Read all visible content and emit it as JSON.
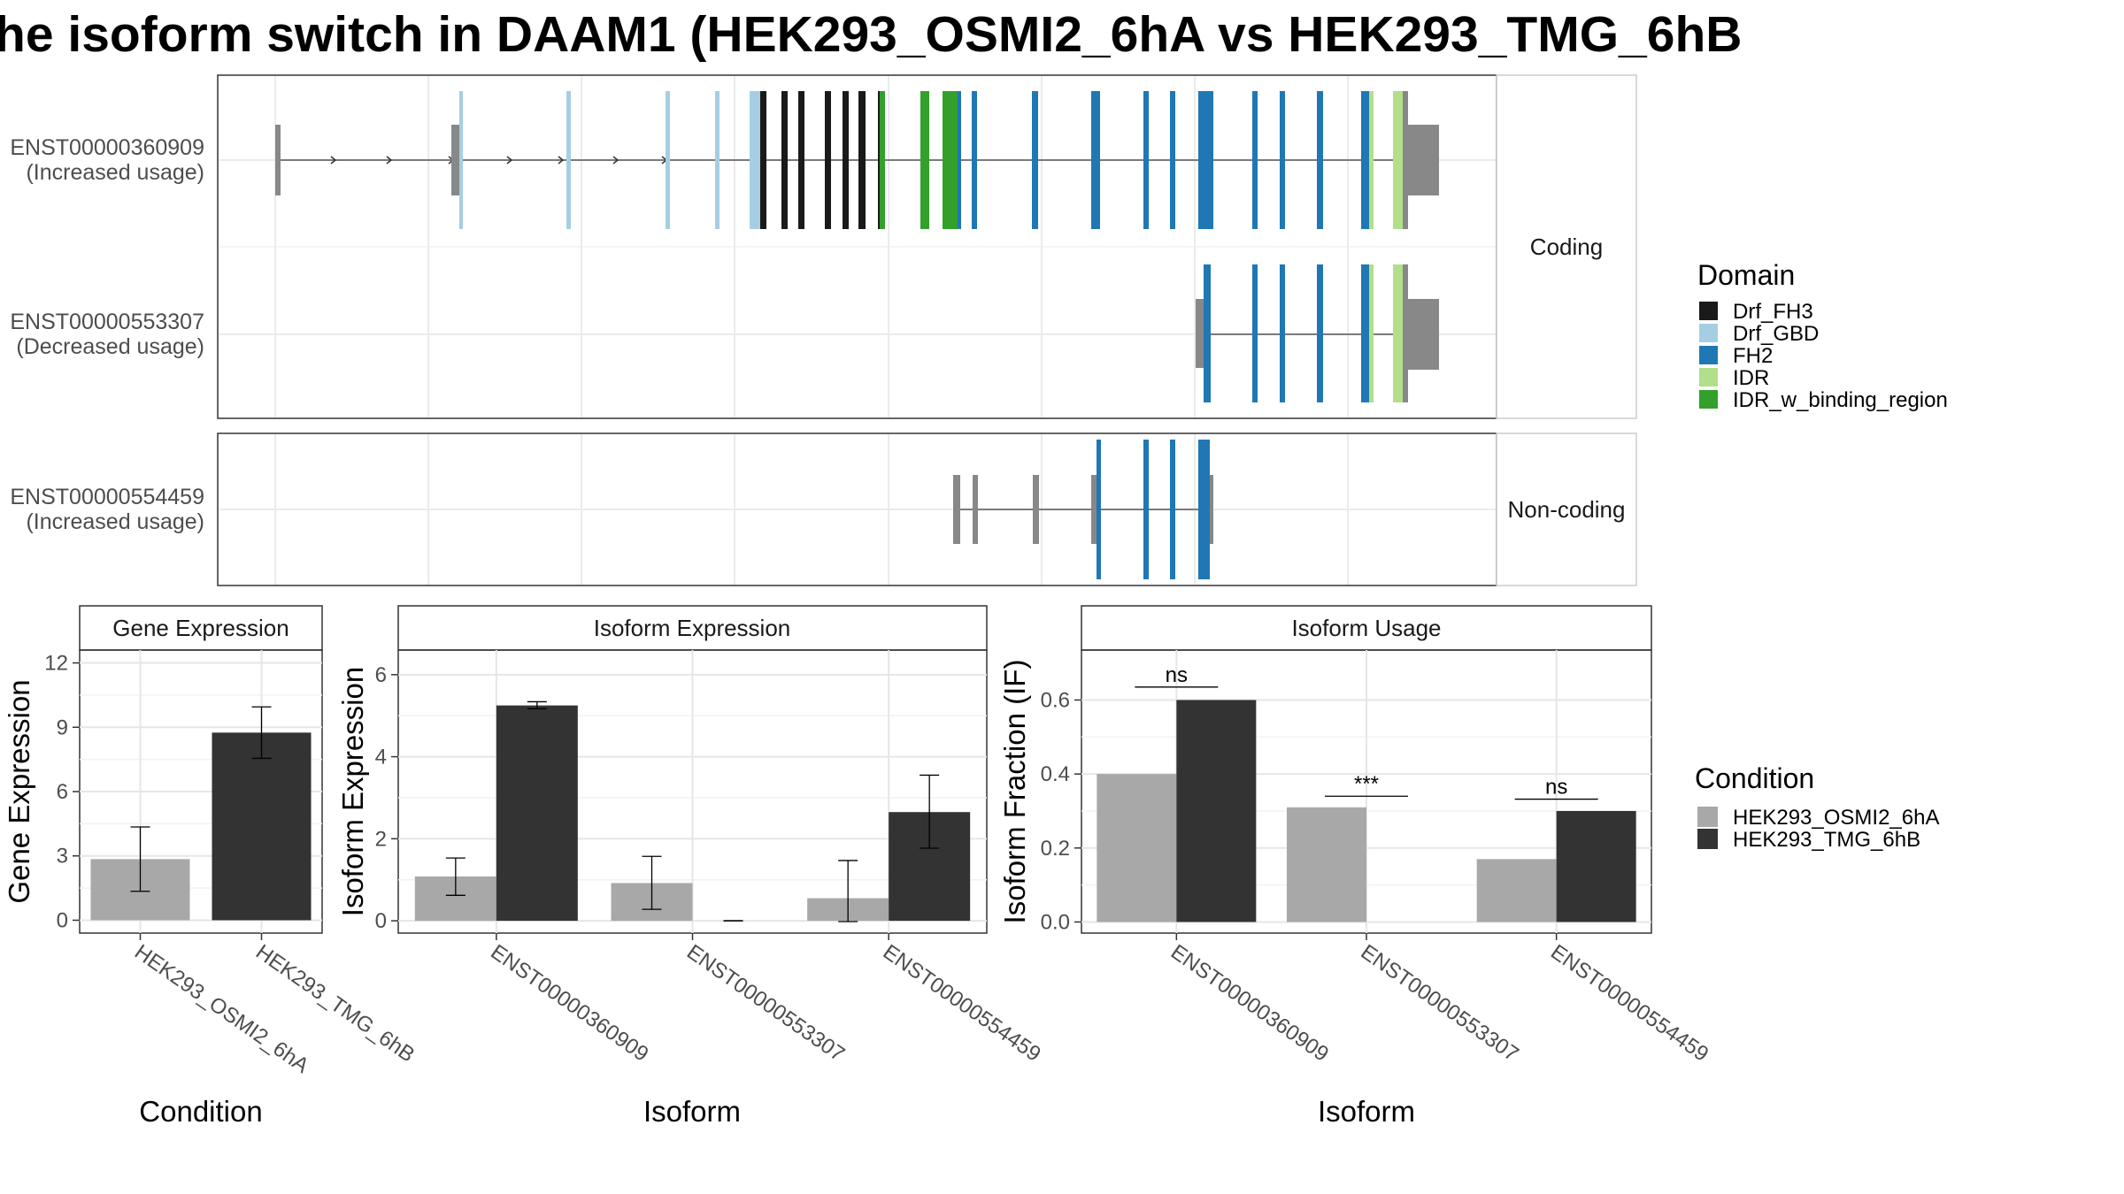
{
  "title": "he isoform switch in DAAM1 (HEK293_OSMI2_6hA vs HEK293_TMG_6hB",
  "colors": {
    "Drf_FH3": "#1a1a1a",
    "Drf_GBD": "#a6cee3",
    "FH2": "#1f78b4",
    "IDR": "#b2df8a",
    "IDR_w_binding_region": "#33a02c",
    "exon": "#888888",
    "cond_A": "#a8a8a8",
    "cond_B": "#333333"
  },
  "structure": {
    "coding_strip": "Coding",
    "noncoding_strip": "Non-coding",
    "transcripts": [
      {
        "id": "ENST00000360909",
        "usage": "(Increased usage)"
      },
      {
        "id": "ENST00000553307",
        "usage": "(Decreased usage)"
      },
      {
        "id": "ENST00000554459",
        "usage": "(Increased usage)"
      }
    ]
  },
  "legend_domain": {
    "title": "Domain",
    "items": [
      "Drf_FH3",
      "Drf_GBD",
      "FH2",
      "IDR",
      "IDR_w_binding_region"
    ]
  },
  "legend_condition": {
    "title": "Condition",
    "items": [
      "HEK293_OSMI2_6hA",
      "HEK293_TMG_6hB"
    ]
  },
  "chart_data": [
    {
      "type": "bar",
      "title": "Gene Expression",
      "xlabel": "Condition",
      "ylabel": "Gene Expression",
      "categories": [
        "HEK293_OSMI2_6hA",
        "HEK293_TMG_6hB"
      ],
      "values": [
        2.85,
        8.75
      ],
      "error_low": [
        1.35,
        7.55
      ],
      "error_high": [
        4.35,
        9.95
      ],
      "ylim": [
        -0.6,
        12.6
      ],
      "yticks": [
        0,
        3,
        6,
        9,
        12
      ]
    },
    {
      "type": "bar",
      "title": "Isoform Expression",
      "xlabel": "Isoform",
      "ylabel": "Isoform Expression",
      "categories": [
        "ENST00000360909",
        "ENST00000553307",
        "ENST00000554459"
      ],
      "series": [
        {
          "name": "HEK293_OSMI2_6hA",
          "values": [
            1.08,
            0.92,
            0.55
          ],
          "error_low": [
            0.62,
            0.28,
            -0.02
          ],
          "error_high": [
            1.53,
            1.57,
            1.47
          ]
        },
        {
          "name": "HEK293_TMG_6hB",
          "values": [
            5.25,
            0.0,
            2.65
          ],
          "error_low": [
            5.17,
            0.0,
            1.77
          ],
          "error_high": [
            5.34,
            0.0,
            3.55
          ]
        }
      ],
      "ylim": [
        -0.3,
        6.6
      ],
      "yticks": [
        0,
        2,
        4,
        6
      ]
    },
    {
      "type": "bar",
      "title": "Isoform Usage",
      "xlabel": "Isoform",
      "ylabel": "Isoform Fraction (IF)",
      "categories": [
        "ENST00000360909",
        "ENST00000553307",
        "ENST00000554459"
      ],
      "series": [
        {
          "name": "HEK293_OSMI2_6hA",
          "values": [
            0.4,
            0.31,
            0.17
          ]
        },
        {
          "name": "HEK293_TMG_6hB",
          "values": [
            0.6,
            0.0,
            0.3
          ]
        }
      ],
      "significance": [
        "ns",
        "***",
        "ns"
      ],
      "ylim": [
        -0.03,
        0.735
      ],
      "yticks": [
        0.0,
        0.2,
        0.4,
        0.6
      ],
      "ytick_labels": [
        "0.0",
        "0.2",
        "0.4",
        "0.6"
      ]
    }
  ]
}
